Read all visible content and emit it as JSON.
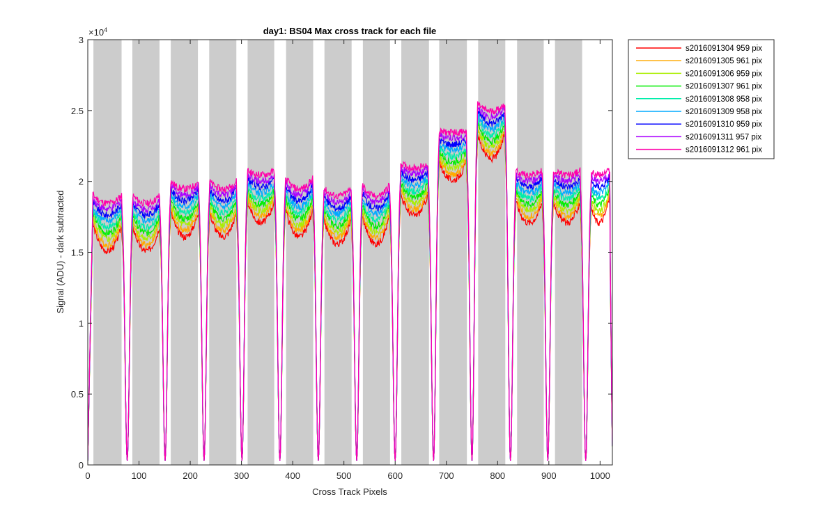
{
  "chart_data": {
    "type": "line",
    "title": "day1: BS04  Max cross track for each file",
    "xlabel": "Cross Track Pixels",
    "ylabel": "Signal (ADU) - dark subtracted",
    "y_exponent_label": "×10",
    "y_exponent_power": "4",
    "xlim": [
      0,
      1024
    ],
    "ylim": [
      0,
      30000
    ],
    "x_ticks": [
      0,
      100,
      200,
      300,
      400,
      500,
      600,
      700,
      800,
      900,
      1000
    ],
    "x_tick_labels": [
      "0",
      "100",
      "200",
      "300",
      "400",
      "500",
      "600",
      "700",
      "800",
      "900",
      "1000"
    ],
    "y_ticks": [
      0,
      5000,
      10000,
      15000,
      20000,
      25000,
      30000
    ],
    "y_tick_labels": [
      "0",
      "0.5",
      "1",
      "1.5",
      "2",
      "2.5",
      "3"
    ],
    "legend_position": "outside-right",
    "shaded_bands": [
      [
        11,
        66
      ],
      [
        87,
        140
      ],
      [
        162,
        215
      ],
      [
        237,
        290
      ],
      [
        312,
        364
      ],
      [
        387,
        440
      ],
      [
        462,
        515
      ],
      [
        537,
        590
      ],
      [
        612,
        666
      ],
      [
        686,
        740
      ],
      [
        762,
        815
      ],
      [
        838,
        890
      ],
      [
        912,
        965
      ]
    ],
    "shade_color": "#cccccc",
    "dips": [
      [
        77,
        3000
      ],
      [
        151,
        3000
      ],
      [
        227,
        3000
      ],
      [
        301,
        3000
      ],
      [
        375,
        3000
      ],
      [
        450,
        3000
      ],
      [
        525,
        3000
      ],
      [
        600,
        3000
      ],
      [
        675,
        3000
      ],
      [
        750,
        3000
      ],
      [
        825,
        3000
      ],
      [
        898,
        3000
      ],
      [
        972,
        3000
      ]
    ],
    "series": [
      {
        "name": "s2016091304 959 pix",
        "color": "#ff0000",
        "level": 0
      },
      {
        "name": "s2016091305 961 pix",
        "color": "#ffaa00",
        "level": 1
      },
      {
        "name": "s2016091306 959 pix",
        "color": "#aaee00",
        "level": 2
      },
      {
        "name": "s2016091307 961 pix",
        "color": "#00ee00",
        "level": 3
      },
      {
        "name": "s2016091308 958 pix",
        "color": "#00eeaa",
        "level": 4
      },
      {
        "name": "s2016091309 958 pix",
        "color": "#00aaff",
        "level": 5
      },
      {
        "name": "s2016091310 959 pix",
        "color": "#0000ff",
        "level": 6
      },
      {
        "name": "s2016091311 957 pix",
        "color": "#aa00ff",
        "level": 7
      },
      {
        "name": "s2016091312 961 pix",
        "color": "#ff00aa",
        "level": 8
      }
    ],
    "segment_profiles": [
      {
        "x0": 0,
        "x1": 77,
        "edge": 21000,
        "mid": 17500
      },
      {
        "x0": 77,
        "x1": 151,
        "edge": 21000,
        "mid": 17500
      },
      {
        "x0": 151,
        "x1": 227,
        "edge": 22000,
        "mid": 18500
      },
      {
        "x0": 227,
        "x1": 301,
        "edge": 22000,
        "mid": 18500
      },
      {
        "x0": 301,
        "x1": 375,
        "edge": 22500,
        "mid": 19500
      },
      {
        "x0": 375,
        "x1": 450,
        "edge": 22500,
        "mid": 18500
      },
      {
        "x0": 450,
        "x1": 525,
        "edge": 21500,
        "mid": 18000
      },
      {
        "x0": 525,
        "x1": 600,
        "edge": 22000,
        "mid": 18000
      },
      {
        "x0": 600,
        "x1": 675,
        "edge": 23000,
        "mid": 20000
      },
      {
        "x0": 675,
        "x1": 750,
        "edge": 25000,
        "mid": 22500
      },
      {
        "x0": 750,
        "x1": 825,
        "edge": 27500,
        "mid": 24000
      },
      {
        "x0": 825,
        "x1": 898,
        "edge": 22500,
        "mid": 19500
      },
      {
        "x0": 898,
        "x1": 972,
        "edge": 22500,
        "mid": 19500
      },
      {
        "x0": 972,
        "x1": 1024,
        "edge": 22500,
        "mid": 19500
      }
    ]
  }
}
